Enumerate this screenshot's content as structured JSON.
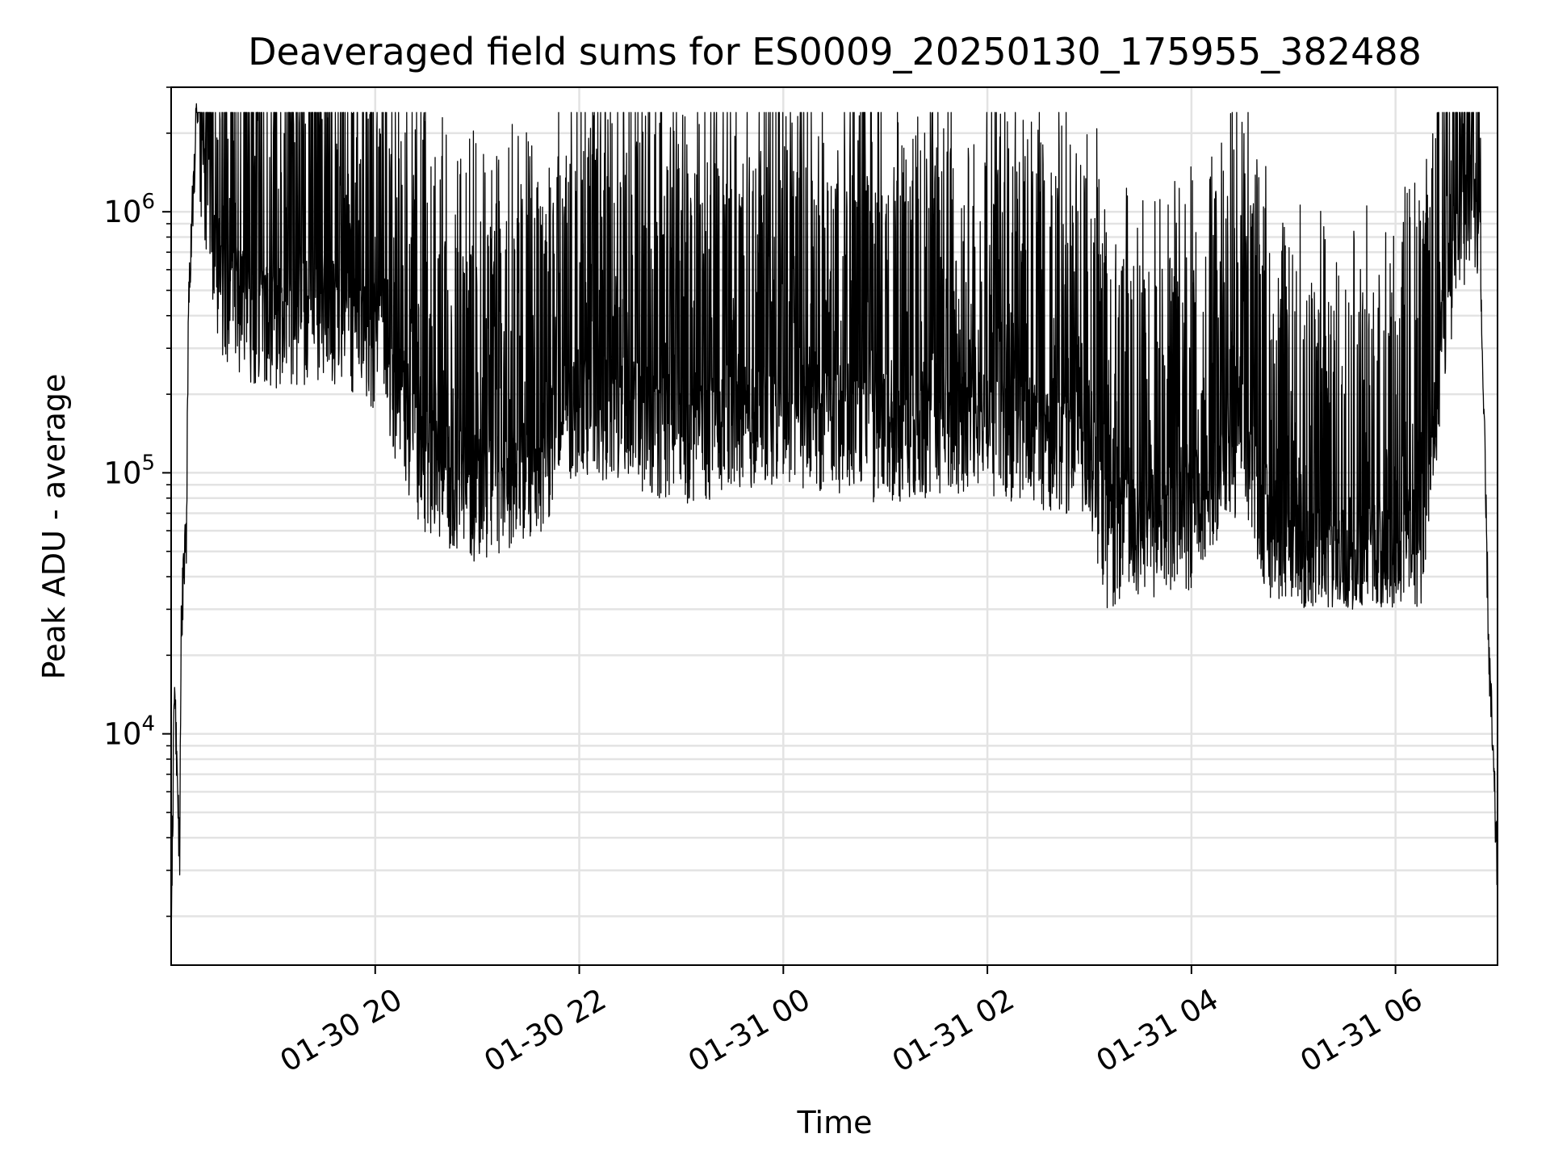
{
  "chart_data": {
    "type": "line",
    "title": "Deaveraged field sums for ES0009_20250130_175955_382488",
    "xlabel": "Time",
    "ylabel": "Peak ADU - average",
    "yscale": "log",
    "grid": true,
    "legend": "none",
    "line_color": "#000000",
    "grid_color": "#e3e3e3",
    "xlim": [
      "2025-01-30 18:00",
      "2025-01-31 07:00"
    ],
    "ylim": [
      1300,
      3000000
    ],
    "x_ticks": [
      {
        "time": "2025-01-30 20:00",
        "label": "01-30 20"
      },
      {
        "time": "2025-01-30 22:00",
        "label": "01-30 22"
      },
      {
        "time": "2025-01-31 00:00",
        "label": "01-31 00"
      },
      {
        "time": "2025-01-31 02:00",
        "label": "01-31 02"
      },
      {
        "time": "2025-01-31 04:00",
        "label": "01-31 04"
      },
      {
        "time": "2025-01-31 06:00",
        "label": "01-31 06"
      }
    ],
    "y_ticks": [
      {
        "value": 10000,
        "base": "10",
        "exp": "4"
      },
      {
        "value": 100000,
        "base": "10",
        "exp": "5"
      },
      {
        "value": 1000000,
        "base": "10",
        "exp": "6"
      }
    ],
    "series": [
      {
        "values_description_points": [
          {
            "x": "2025-01-30 18:00",
            "y": 1800
          },
          {
            "x": "2025-01-30 18:02",
            "y": 15000
          },
          {
            "x": "2025-01-30 18:05",
            "y": 3200
          },
          {
            "x": "2025-01-30 18:06",
            "y": 28000
          },
          {
            "x": "2025-01-30 18:09",
            "y": 60000
          },
          {
            "x": "2025-01-30 18:10",
            "y": 350000
          },
          {
            "x": "2025-01-30 18:12",
            "y": 900000
          },
          {
            "x": "2025-01-30 18:15",
            "y": 2200000
          },
          {
            "x": "2025-01-30 18:30",
            "y": 500000
          },
          {
            "x": "2025-01-30 19:00",
            "y": 400000
          },
          {
            "x": "2025-01-30 19:30",
            "y": 450000
          },
          {
            "x": "2025-01-30 20:00",
            "y": 350000
          },
          {
            "x": "2025-01-30 20:30",
            "y": 110000
          },
          {
            "x": "2025-01-30 21:00",
            "y": 90000
          },
          {
            "x": "2025-01-30 21:30",
            "y": 100000
          },
          {
            "x": "2025-01-30 22:00",
            "y": 200000
          },
          {
            "x": "2025-01-30 23:00",
            "y": 150000
          },
          {
            "x": "2025-01-31 00:00",
            "y": 180000
          },
          {
            "x": "2025-01-31 01:00",
            "y": 150000
          },
          {
            "x": "2025-01-31 02:00",
            "y": 160000
          },
          {
            "x": "2025-01-31 03:00",
            "y": 130000
          },
          {
            "x": "2025-01-31 03:10",
            "y": 60000
          },
          {
            "x": "2025-01-31 04:00",
            "y": 70000
          },
          {
            "x": "2025-01-31 04:30",
            "y": 150000
          },
          {
            "x": "2025-01-31 04:50",
            "y": 50000
          },
          {
            "x": "2025-01-31 05:30",
            "y": 45000
          },
          {
            "x": "2025-01-31 06:15",
            "y": 60000
          },
          {
            "x": "2025-01-31 06:30",
            "y": 500000
          },
          {
            "x": "2025-01-31 06:45",
            "y": 1400000
          },
          {
            "x": "2025-01-31 06:50",
            "y": 600000
          },
          {
            "x": "2025-01-31 06:55",
            "y": 20000
          },
          {
            "x": "2025-01-31 07:00",
            "y": 2800
          }
        ]
      }
    ]
  }
}
